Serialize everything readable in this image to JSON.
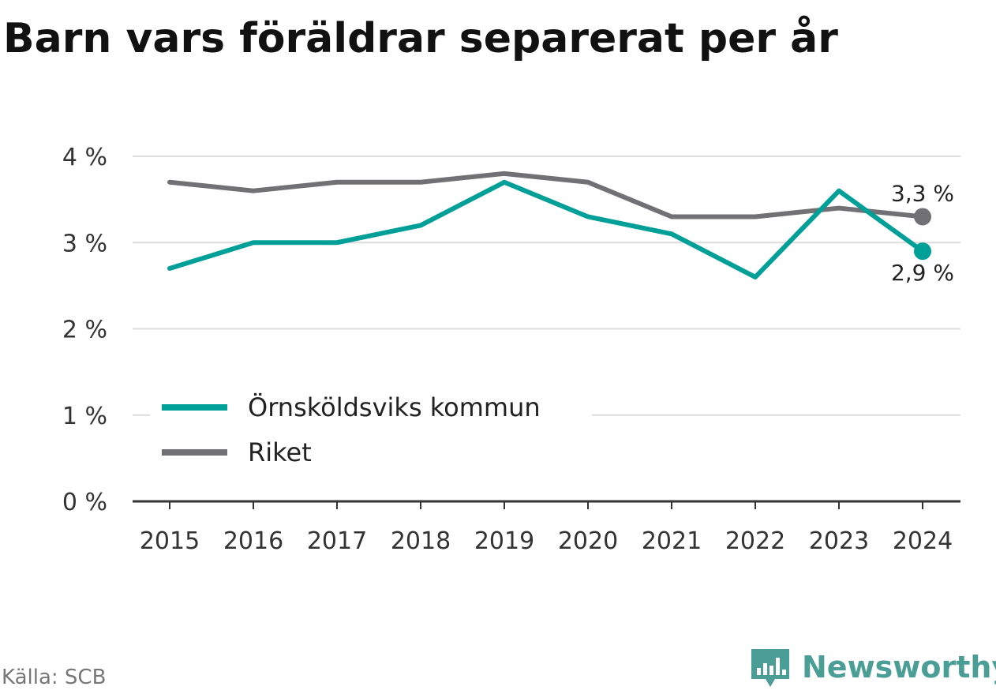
{
  "title": "Barn vars föräldrar separerat per år",
  "source": "Källa: SCB",
  "brand": {
    "name": "Newsworthy",
    "color": "#4a9e96",
    "icon": "bar-chart-speech-icon"
  },
  "chart_data": {
    "type": "line",
    "title": "Barn vars föräldrar separerat per år",
    "xlabel": "",
    "ylabel": "",
    "x": [
      "2015",
      "2016",
      "2017",
      "2018",
      "2019",
      "2020",
      "2021",
      "2022",
      "2023",
      "2024"
    ],
    "ylim": [
      0,
      4
    ],
    "yticks": [
      0,
      1,
      2,
      3,
      4
    ],
    "ytick_labels": [
      "0 %",
      "1 %",
      "2 %",
      "3 %",
      "4 %"
    ],
    "grid": true,
    "legend_placement": "bottom-left",
    "series": [
      {
        "name": "Örnsköldsviks kommun",
        "color": "#009f97",
        "values": [
          2.7,
          3.0,
          3.0,
          3.2,
          3.7,
          3.3,
          3.1,
          2.6,
          3.6,
          2.9
        ],
        "end_label": "2,9 %"
      },
      {
        "name": "Riket",
        "color": "#707075",
        "values": [
          3.7,
          3.6,
          3.7,
          3.7,
          3.8,
          3.7,
          3.3,
          3.3,
          3.4,
          3.3
        ],
        "end_label": "3,3 %"
      }
    ]
  }
}
